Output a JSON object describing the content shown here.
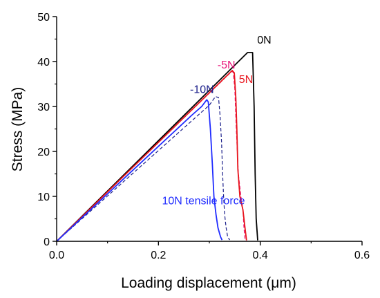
{
  "chart_data": {
    "type": "line",
    "xlabel": "Loading displacement  (μm)",
    "ylabel": "Stress (MPa)",
    "xlim": [
      0.0,
      0.6
    ],
    "ylim": [
      0,
      50
    ],
    "x_ticks": [
      "0.0",
      "0.2",
      "0.4",
      "0.6"
    ],
    "y_ticks": [
      "0",
      "10",
      "20",
      "30",
      "40",
      "50"
    ],
    "grid": false,
    "series": [
      {
        "name": "0N",
        "color": "#000000",
        "dash": false,
        "points": [
          [
            0.0,
            0
          ],
          [
            0.375,
            42.0
          ],
          [
            0.385,
            42.0
          ],
          [
            0.388,
            30
          ],
          [
            0.39,
            15
          ],
          [
            0.392,
            5
          ],
          [
            0.395,
            0.2
          ]
        ]
      },
      {
        "name": "5N",
        "color": "#e8141c",
        "dash": false,
        "points": [
          [
            0.0,
            0
          ],
          [
            0.345,
            38.0
          ],
          [
            0.349,
            37.5
          ],
          [
            0.352,
            32
          ],
          [
            0.354,
            25
          ],
          [
            0.356,
            16
          ],
          [
            0.36,
            10
          ],
          [
            0.366,
            7
          ],
          [
            0.37,
            3
          ],
          [
            0.373,
            0.2
          ]
        ]
      },
      {
        "name": "-5N",
        "color": "#e8147a",
        "dash": true,
        "points": [
          [
            0.0,
            0
          ],
          [
            0.344,
            37.8
          ],
          [
            0.347,
            37.6
          ],
          [
            0.35,
            34
          ],
          [
            0.353,
            25
          ],
          [
            0.357,
            15
          ],
          [
            0.362,
            10
          ],
          [
            0.366,
            7
          ],
          [
            0.368,
            3
          ],
          [
            0.37,
            0.5
          ]
        ]
      },
      {
        "name": "-10N",
        "color": "#1b1f8a",
        "dash": true,
        "points": [
          [
            0.0,
            0
          ],
          [
            0.3,
            30.3
          ],
          [
            0.312,
            32.2
          ],
          [
            0.318,
            32.0
          ],
          [
            0.321,
            28
          ],
          [
            0.324,
            22
          ],
          [
            0.326,
            15
          ],
          [
            0.328,
            10
          ],
          [
            0.33,
            6
          ],
          [
            0.333,
            3
          ],
          [
            0.336,
            1
          ],
          [
            0.34,
            0.3
          ]
        ]
      },
      {
        "name": "10N tensile force",
        "color": "#1f2bff",
        "dash": false,
        "points": [
          [
            0.0,
            0
          ],
          [
            0.265,
            28.0
          ],
          [
            0.285,
            30.0
          ],
          [
            0.295,
            31.5
          ],
          [
            0.298,
            31.0
          ],
          [
            0.302,
            25
          ],
          [
            0.306,
            17
          ],
          [
            0.309,
            10
          ],
          [
            0.313,
            6
          ],
          [
            0.317,
            3
          ],
          [
            0.322,
            1
          ],
          [
            0.325,
            0.3
          ]
        ]
      }
    ],
    "annotations": [
      {
        "text": "0N",
        "x": 0.394,
        "y": 44.0,
        "color": "#000000"
      },
      {
        "text": "-5N",
        "x": 0.316,
        "y": 38.5,
        "color": "#e8147a"
      },
      {
        "text": "5N",
        "x": 0.358,
        "y": 35.2,
        "color": "#e8141c"
      },
      {
        "text": "-10N",
        "x": 0.262,
        "y": 33.0,
        "color": "#1b1f8a"
      },
      {
        "text": "10N tensile force",
        "x": 0.207,
        "y": 8.2,
        "color": "#1f2bff"
      }
    ]
  }
}
